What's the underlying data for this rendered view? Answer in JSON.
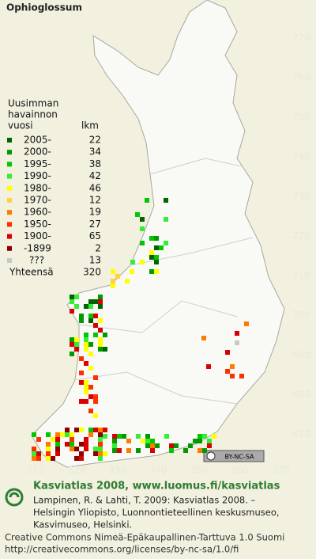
{
  "title": "Ophioglossum",
  "legend": {
    "heading": [
      "Uusimman",
      "havainnon",
      "vuosi"
    ],
    "count_heading": "lkm",
    "entries": [
      {
        "label": "2005-",
        "count": 22,
        "color": "#006400"
      },
      {
        "label": "2000-",
        "count": 34,
        "color": "#009a00"
      },
      {
        "label": "1995-",
        "count": 38,
        "color": "#00c800"
      },
      {
        "label": "1990-",
        "count": 42,
        "color": "#33ee33"
      },
      {
        "label": "1980-",
        "count": 46,
        "color": "#ffff00"
      },
      {
        "label": "1970-",
        "count": 12,
        "color": "#ffd040"
      },
      {
        "label": "1960-",
        "count": 19,
        "color": "#ff7a00"
      },
      {
        "label": "1950-",
        "count": 27,
        "color": "#ff3000"
      },
      {
        "label": "1900-",
        "count": 65,
        "color": "#d80000"
      },
      {
        "label": "-1899",
        "count": 2,
        "color": "#8c0000"
      },
      {
        "label": "???",
        "count": 13,
        "color": "#c8c8c8"
      }
    ],
    "total": {
      "label": "Yhteensä",
      "count": 320
    }
  },
  "x_labels": [
    310,
    320,
    330,
    340,
    350,
    360,
    370
  ],
  "y_labels": [
    670,
    680,
    690,
    700,
    710,
    720,
    730,
    740,
    750,
    760,
    770
  ],
  "badge": "BY-NC-SA",
  "footer": {
    "heading": "Kasviatlas 2008, www.luomus.fi/kasviatlas",
    "citation": [
      "Lampinen, R. & Lahti, T. 2009: Kasviatlas 2008. –",
      "Helsingin Yliopisto, Luonnontieteellinen keskusmuseo,",
      "Kasvimuseo, Helsinki."
    ],
    "license": [
      "Creative Commons Nimeä-Epäkaupallinen-Tarttuva 1.0 Suomi",
      "http://creativecommons.org/licenses/by-nc-sa/1.0/fi"
    ]
  }
}
